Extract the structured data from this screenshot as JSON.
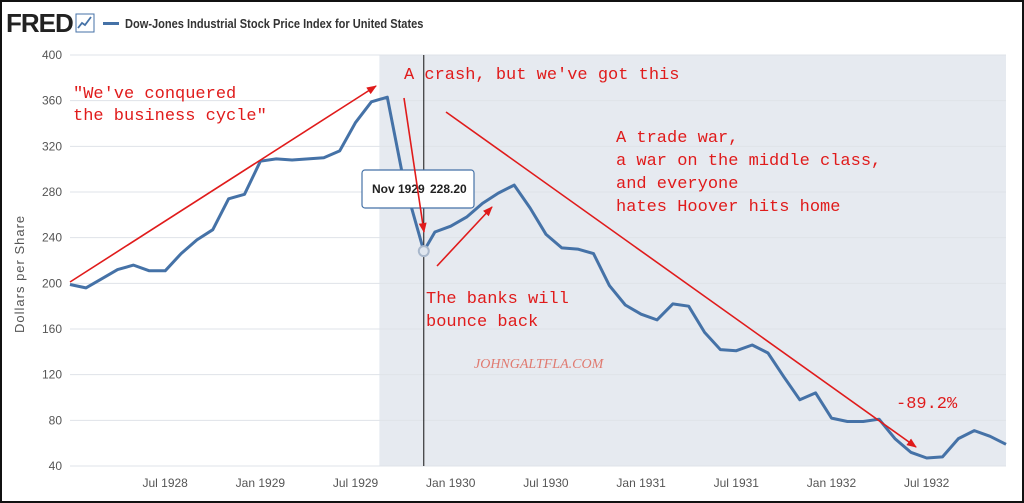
{
  "header": {
    "logo": "FRED",
    "logo_icon": "trend-line-icon",
    "series_label": "Dow-Jones Industrial Stock Price Index for United States"
  },
  "colors": {
    "series": "#4572a7",
    "annotation": "#e01b1b",
    "recession": "#e6eaf0",
    "grid": "#dfe3e8"
  },
  "tooltip": {
    "date": "Nov 1929",
    "value": "228.20"
  },
  "annotations": {
    "conquered": [
      "\"We've conquered",
      "the business cycle\""
    ],
    "crash": [
      "A crash, but we've got this"
    ],
    "trade_war": [
      "A trade war,",
      "a war on the middle class,",
      "and everyone",
      "hates Hoover hits home"
    ],
    "banks": [
      "The banks will",
      "bounce back"
    ],
    "pct": [
      "-89.2%"
    ]
  },
  "watermark": "JOHNGALTFLA.COM",
  "chart_data": {
    "type": "line",
    "title": "Dow-Jones Industrial Stock Price Index for United States",
    "xlabel": "",
    "ylabel": "Dollars per Share",
    "ylim": [
      40,
      400
    ],
    "yticks": [
      40,
      80,
      120,
      160,
      200,
      240,
      280,
      320,
      360,
      400
    ],
    "xticks": [
      {
        "label": "Jul 1928",
        "m": 6
      },
      {
        "label": "Jan 1929",
        "m": 12
      },
      {
        "label": "Jul 1929",
        "m": 18
      },
      {
        "label": "Jan 1930",
        "m": 24
      },
      {
        "label": "Jul 1930",
        "m": 30
      },
      {
        "label": "Jan 1931",
        "m": 36
      },
      {
        "label": "Jul 1931",
        "m": 42
      },
      {
        "label": "Jan 1932",
        "m": 48
      },
      {
        "label": "Jul 1932",
        "m": 54
      }
    ],
    "x_start": "Jan 1928",
    "x_range_months": [
      0,
      59
    ],
    "recession_months": [
      19.5,
      61
    ],
    "marker_month": 22.3,
    "series": [
      {
        "name": "Dow-Jones Industrial Stock Price Index for United States",
        "values": [
          {
            "m": 0,
            "y": 199
          },
          {
            "m": 1,
            "y": 196
          },
          {
            "m": 2,
            "y": 204
          },
          {
            "m": 3,
            "y": 212
          },
          {
            "m": 4,
            "y": 216
          },
          {
            "m": 5,
            "y": 211
          },
          {
            "m": 6,
            "y": 211
          },
          {
            "m": 7,
            "y": 226
          },
          {
            "m": 8,
            "y": 238
          },
          {
            "m": 9,
            "y": 247
          },
          {
            "m": 10,
            "y": 274
          },
          {
            "m": 11,
            "y": 278
          },
          {
            "m": 12,
            "y": 307
          },
          {
            "m": 13,
            "y": 309
          },
          {
            "m": 14,
            "y": 308
          },
          {
            "m": 15,
            "y": 309
          },
          {
            "m": 16,
            "y": 310
          },
          {
            "m": 17,
            "y": 316
          },
          {
            "m": 18,
            "y": 341
          },
          {
            "m": 19,
            "y": 359
          },
          {
            "m": 20,
            "y": 363
          },
          {
            "m": 21,
            "y": 292
          },
          {
            "m": 22.3,
            "y": 228.2
          },
          {
            "m": 23,
            "y": 245
          },
          {
            "m": 24,
            "y": 250
          },
          {
            "m": 25,
            "y": 258
          },
          {
            "m": 26,
            "y": 270
          },
          {
            "m": 27,
            "y": 279
          },
          {
            "m": 28,
            "y": 286
          },
          {
            "m": 29,
            "y": 266
          },
          {
            "m": 30,
            "y": 243
          },
          {
            "m": 31,
            "y": 231
          },
          {
            "m": 32,
            "y": 230
          },
          {
            "m": 33,
            "y": 226
          },
          {
            "m": 34,
            "y": 198
          },
          {
            "m": 35,
            "y": 181
          },
          {
            "m": 36,
            "y": 173
          },
          {
            "m": 37,
            "y": 168
          },
          {
            "m": 38,
            "y": 182
          },
          {
            "m": 39,
            "y": 180
          },
          {
            "m": 40,
            "y": 157
          },
          {
            "m": 41,
            "y": 142
          },
          {
            "m": 42,
            "y": 141
          },
          {
            "m": 43,
            "y": 146
          },
          {
            "m": 44,
            "y": 139
          },
          {
            "m": 45,
            "y": 118
          },
          {
            "m": 46,
            "y": 98
          },
          {
            "m": 47,
            "y": 104
          },
          {
            "m": 48,
            "y": 82
          },
          {
            "m": 49,
            "y": 79
          },
          {
            "m": 50,
            "y": 79
          },
          {
            "m": 51,
            "y": 81
          },
          {
            "m": 52,
            "y": 64
          },
          {
            "m": 53,
            "y": 52
          },
          {
            "m": 54,
            "y": 47
          },
          {
            "m": 55,
            "y": 48
          },
          {
            "m": 56,
            "y": 64
          },
          {
            "m": 57,
            "y": 71
          },
          {
            "m": 58,
            "y": 66
          },
          {
            "m": 59,
            "y": 59
          }
        ]
      }
    ]
  }
}
